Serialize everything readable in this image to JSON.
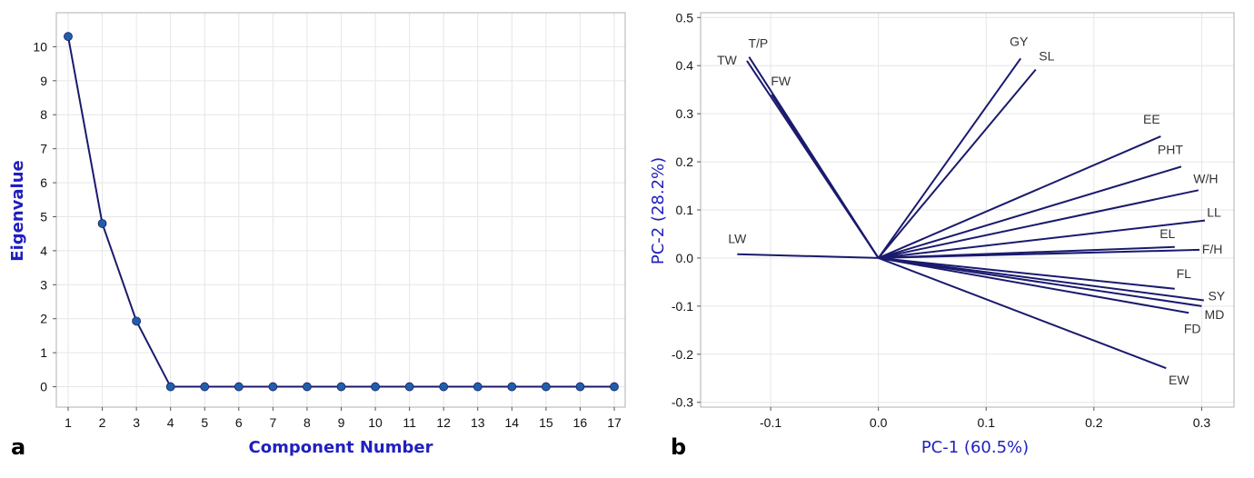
{
  "colors": {
    "line": "#1a1a6e",
    "marker": "#1f5fa8",
    "axis_label": "#1f1fbf",
    "grid": "#e6e6e6",
    "frame": "#b0b0b0"
  },
  "chart_data": [
    {
      "type": "line",
      "panel_label": "a",
      "xlabel": "Component Number",
      "ylabel": "Eigenvalue",
      "x": [
        1,
        2,
        3,
        4,
        5,
        6,
        7,
        8,
        9,
        10,
        11,
        12,
        13,
        14,
        15,
        16,
        17
      ],
      "values": [
        10.3,
        4.8,
        1.93,
        0,
        0,
        0,
        0,
        0,
        0,
        0,
        0,
        0,
        0,
        0,
        0,
        0,
        0
      ],
      "xticks": [
        "1",
        "2",
        "3",
        "4",
        "5",
        "6",
        "7",
        "8",
        "9",
        "10",
        "11",
        "12",
        "13",
        "14",
        "15",
        "16",
        "17"
      ],
      "yticks": [
        "0",
        "1",
        "2",
        "3",
        "4",
        "5",
        "6",
        "7",
        "8",
        "9",
        "10"
      ],
      "ylim": [
        -0.6,
        11.0
      ],
      "grid": true,
      "markers": true
    },
    {
      "type": "scatter",
      "subtype": "loading-vectors",
      "panel_label": "b",
      "xlabel": "PC-1 (60.5%)",
      "ylabel": "PC-2 (28.2%)",
      "xlim": [
        -0.165,
        0.33
      ],
      "ylim": [
        -0.31,
        0.51
      ],
      "xticks": [
        "-0.1",
        "0.0",
        "0.1",
        "0.2",
        "0.3"
      ],
      "yticks": [
        "-0.3",
        "-0.2",
        "-0.1",
        "0.0",
        "0.1",
        "0.2",
        "0.3",
        "0.4",
        "0.5"
      ],
      "grid": true,
      "vectors": [
        {
          "label": "TW",
          "x": -0.122,
          "y": 0.41
        },
        {
          "label": "T/P",
          "x": -0.12,
          "y": 0.418
        },
        {
          "label": "FW",
          "x": -0.099,
          "y": 0.34
        },
        {
          "label": "GY",
          "x": 0.132,
          "y": 0.415
        },
        {
          "label": "SL",
          "x": 0.146,
          "y": 0.392
        },
        {
          "label": "EE",
          "x": 0.262,
          "y": 0.253
        },
        {
          "label": "PHT",
          "x": 0.281,
          "y": 0.19
        },
        {
          "label": "W/H",
          "x": 0.297,
          "y": 0.141
        },
        {
          "label": "LL",
          "x": 0.303,
          "y": 0.078
        },
        {
          "label": "LW",
          "x": -0.131,
          "y": 0.008
        },
        {
          "label": "EL",
          "x": 0.275,
          "y": 0.023
        },
        {
          "label": "F/H",
          "x": 0.298,
          "y": 0.017
        },
        {
          "label": "FL",
          "x": 0.275,
          "y": -0.064
        },
        {
          "label": "SY",
          "x": 0.302,
          "y": -0.088
        },
        {
          "label": "MD",
          "x": 0.3,
          "y": -0.1
        },
        {
          "label": "FD",
          "x": 0.288,
          "y": -0.114
        },
        {
          "label": "EW",
          "x": 0.267,
          "y": -0.229
        }
      ]
    }
  ]
}
